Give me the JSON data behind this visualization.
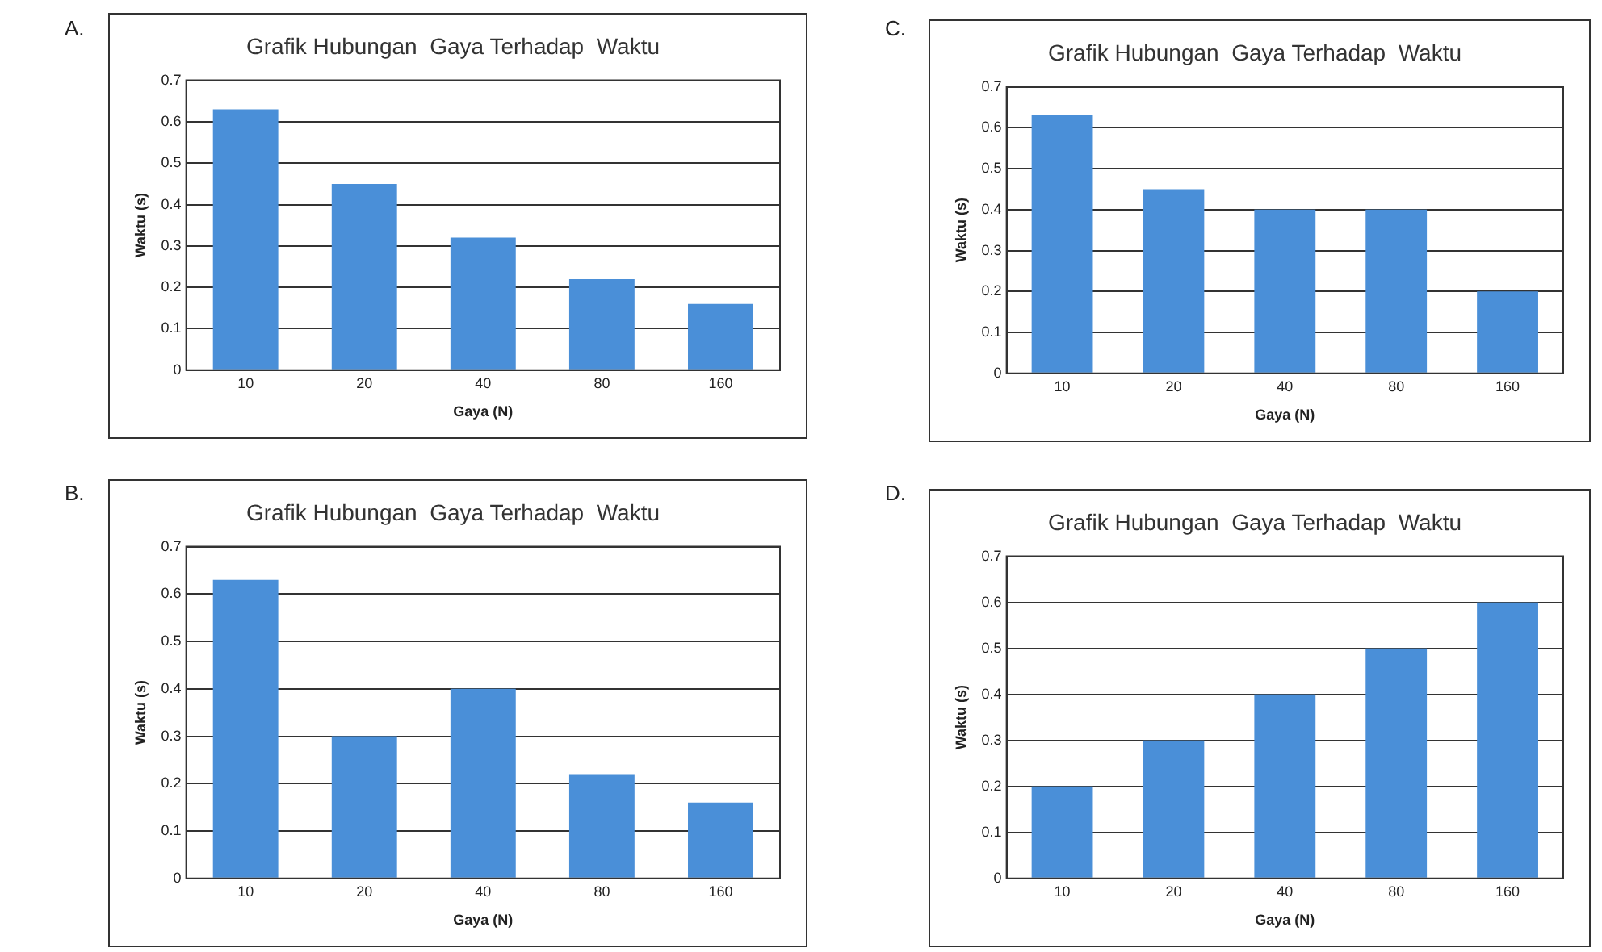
{
  "chart_data": [
    {
      "type": "bar",
      "title": "Grafik Hubungan  Gaya Terhadap  Waktu",
      "xlabel": "Gaya (N)",
      "ylabel": "Waktu (s)",
      "annotations": [
        "A."
      ],
      "categories": [
        "10",
        "20",
        "40",
        "80",
        "160"
      ],
      "values": [
        0.63,
        0.45,
        0.32,
        0.22,
        0.16
      ],
      "color": "#4a8fd8",
      "ylim": [
        0,
        0.7
      ],
      "yticks": [
        0,
        0.1,
        0.2,
        0.3,
        0.4,
        0.5,
        0.6,
        0.7
      ],
      "grid": "y",
      "legend": false
    },
    {
      "type": "bar",
      "title": "Grafik Hubungan  Gaya Terhadap  Waktu",
      "xlabel": "Gaya (N)",
      "ylabel": "Waktu (s)",
      "annotations": [
        "C."
      ],
      "categories": [
        "10",
        "20",
        "40",
        "80",
        "160"
      ],
      "values": [
        0.63,
        0.45,
        0.4,
        0.4,
        0.2
      ],
      "color": "#4a8fd8",
      "ylim": [
        0,
        0.7
      ],
      "yticks": [
        0,
        0.1,
        0.2,
        0.3,
        0.4,
        0.5,
        0.6,
        0.7
      ],
      "grid": "y",
      "legend": false
    },
    {
      "type": "bar",
      "title": "Grafik Hubungan  Gaya Terhadap  Waktu",
      "xlabel": "Gaya (N)",
      "ylabel": "Waktu (s)",
      "annotations": [
        "B."
      ],
      "categories": [
        "10",
        "20",
        "40",
        "80",
        "160"
      ],
      "values": [
        0.63,
        0.3,
        0.4,
        0.22,
        0.16
      ],
      "color": "#4a8fd8",
      "ylim": [
        0,
        0.7
      ],
      "yticks": [
        0,
        0.1,
        0.2,
        0.3,
        0.4,
        0.5,
        0.6,
        0.7
      ],
      "grid": "y",
      "legend": false
    },
    {
      "type": "bar",
      "title": "Grafik Hubungan  Gaya Terhadap  Waktu",
      "xlabel": "Gaya (N)",
      "ylabel": "Waktu (s)",
      "annotations": [
        "D."
      ],
      "categories": [
        "10",
        "20",
        "40",
        "80",
        "160"
      ],
      "values": [
        0.2,
        0.3,
        0.4,
        0.5,
        0.6
      ],
      "color": "#4a8fd8",
      "ylim": [
        0,
        0.7
      ],
      "yticks": [
        0,
        0.1,
        0.2,
        0.3,
        0.4,
        0.5,
        0.6,
        0.7
      ],
      "grid": "y",
      "legend": false
    }
  ]
}
